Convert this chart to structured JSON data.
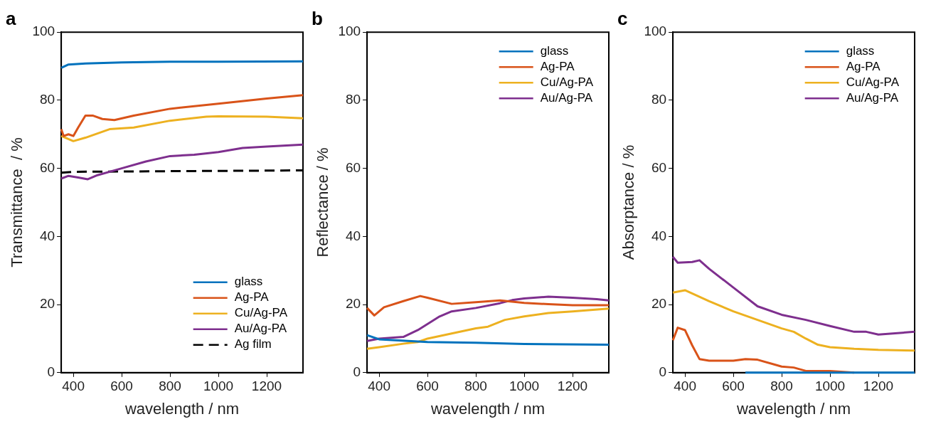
{
  "chart_data": [
    {
      "type": "line",
      "title": "a",
      "xlabel": "wavelength / nm",
      "ylabel": "Transmittance  / %",
      "xlim": [
        350,
        1350
      ],
      "xticks": [
        400,
        600,
        800,
        1000,
        1200
      ],
      "ylim": [
        0,
        100
      ],
      "yticks": [
        0,
        20,
        40,
        60,
        80,
        100
      ],
      "grid": false,
      "legend": "bottom right",
      "line_style": "solid",
      "marker": "none",
      "series": [
        {
          "name": "glass",
          "color": "#0072bd",
          "x": [
            350,
            380,
            450,
            600,
            800,
            1000,
            1350
          ],
          "values": [
            89.5,
            90.5,
            90.8,
            91.1,
            91.3,
            91.3,
            91.4
          ]
        },
        {
          "name": "Ag-PA",
          "color": "#d95319",
          "x": [
            350,
            360,
            380,
            400,
            420,
            450,
            480,
            520,
            570,
            650,
            800,
            1000,
            1200,
            1350
          ],
          "values": [
            71.5,
            69.5,
            70,
            69.5,
            72,
            75.5,
            75.5,
            74.5,
            74.2,
            75.5,
            77.5,
            79,
            80.5,
            81.5
          ]
        },
        {
          "name": "Cu/Ag-PA",
          "color": "#edb120",
          "x": [
            350,
            400,
            450,
            550,
            650,
            800,
            950,
            1000,
            1200,
            1350
          ],
          "values": [
            69.5,
            68,
            69,
            71.5,
            72,
            74,
            75.2,
            75.3,
            75.2,
            74.7
          ]
        },
        {
          "name": "Au/Ag-PA",
          "color": "#7e2f8e",
          "x": [
            350,
            380,
            420,
            460,
            500,
            600,
            700,
            800,
            900,
            1000,
            1100,
            1200,
            1350
          ],
          "values": [
            57,
            57.8,
            57.3,
            56.8,
            58,
            60,
            62,
            63.6,
            64,
            64.8,
            66,
            66.4,
            67
          ]
        },
        {
          "name": "Ag film",
          "color": "#000000",
          "line_style": "dashed",
          "x": [
            350,
            400,
            1350
          ],
          "values": [
            58.7,
            59,
            59.4
          ]
        }
      ]
    },
    {
      "type": "line",
      "title": "b",
      "xlabel": "wavelength / nm",
      "ylabel": "Reflectance / %",
      "xlim": [
        350,
        1350
      ],
      "xticks": [
        400,
        600,
        800,
        1000,
        1200
      ],
      "ylim": [
        0,
        100
      ],
      "yticks": [
        0,
        20,
        40,
        60,
        80,
        100
      ],
      "grid": false,
      "legend": "top right",
      "line_style": "solid",
      "marker": "none",
      "series": [
        {
          "name": "glass",
          "color": "#0072bd",
          "x": [
            350,
            400,
            600,
            800,
            1000,
            1350
          ],
          "values": [
            11,
            9.8,
            9,
            8.8,
            8.4,
            8.2
          ]
        },
        {
          "name": "Ag-PA",
          "color": "#d95319",
          "x": [
            350,
            380,
            420,
            500,
            570,
            600,
            700,
            800,
            900,
            1000,
            1100,
            1200,
            1350
          ],
          "values": [
            19,
            16.8,
            19.2,
            21,
            22.5,
            22,
            20.2,
            20.7,
            21.2,
            20.5,
            20.1,
            19.8,
            19.8
          ]
        },
        {
          "name": "Cu/Ag-PA",
          "color": "#edb120",
          "x": [
            350,
            400,
            500,
            560,
            600,
            700,
            800,
            850,
            920,
            1000,
            1100,
            1200,
            1350
          ],
          "values": [
            7,
            7.5,
            8.5,
            9,
            10,
            11.5,
            13,
            13.5,
            15.5,
            16.5,
            17.5,
            18,
            18.8
          ]
        },
        {
          "name": "Au/Ag-PA",
          "color": "#7e2f8e",
          "x": [
            350,
            400,
            500,
            560,
            650,
            700,
            800,
            900,
            950,
            1000,
            1100,
            1200,
            1300,
            1350
          ],
          "values": [
            9.3,
            10,
            10.5,
            12.5,
            16.5,
            18,
            19,
            20.4,
            21.3,
            21.8,
            22.3,
            22,
            21.6,
            21.2
          ]
        }
      ]
    },
    {
      "type": "line",
      "title": "c",
      "xlabel": "wavelength / nm",
      "ylabel": "Absorptance / %",
      "xlim": [
        350,
        1350
      ],
      "xticks": [
        400,
        600,
        800,
        1000,
        1200
      ],
      "ylim": [
        0,
        100
      ],
      "yticks": [
        0,
        20,
        40,
        60,
        80,
        100
      ],
      "grid": false,
      "legend": "top right",
      "line_style": "solid",
      "marker": "none",
      "series": [
        {
          "name": "glass",
          "color": "#0072bd",
          "x": [
            650,
            1000,
            1350
          ],
          "values": [
            0,
            0,
            0
          ]
        },
        {
          "name": "Ag-PA",
          "color": "#d95319",
          "x": [
            350,
            370,
            400,
            430,
            460,
            500,
            600,
            650,
            700,
            800,
            850,
            900,
            1000,
            1100
          ],
          "values": [
            9.5,
            13.2,
            12.5,
            8,
            4,
            3.5,
            3.5,
            4,
            3.8,
            1.8,
            1.5,
            0.5,
            0.5,
            0
          ]
        },
        {
          "name": "Cu/Ag-PA",
          "color": "#edb120",
          "x": [
            350,
            400,
            500,
            600,
            700,
            800,
            850,
            900,
            950,
            1000,
            1100,
            1200,
            1350
          ],
          "values": [
            23.5,
            24.2,
            21,
            18,
            15.5,
            13,
            12,
            10,
            8.2,
            7.5,
            7,
            6.7,
            6.5
          ]
        },
        {
          "name": "Au/Ag-PA",
          "color": "#7e2f8e",
          "x": [
            350,
            370,
            430,
            460,
            500,
            600,
            700,
            800,
            900,
            1000,
            1100,
            1150,
            1200,
            1350
          ],
          "values": [
            34,
            32.3,
            32.5,
            33,
            30.5,
            25,
            19.5,
            17,
            15.5,
            13.7,
            12,
            12,
            11.2,
            12
          ]
        }
      ]
    }
  ]
}
